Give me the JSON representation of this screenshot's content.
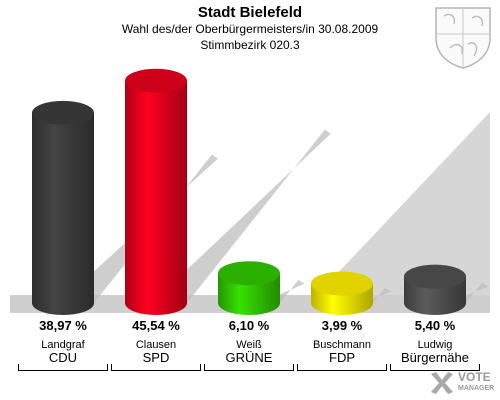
{
  "header": {
    "title": "Stadt Bielefeld",
    "subtitle_line1": "Wahl des/der Oberbürgermeisters/in 30.08.2009",
    "subtitle_line2": "Stimmbezirk 020.3"
  },
  "watermark": {
    "line1": "VOTE",
    "line2": "MANAGER"
  },
  "chart_data": {
    "type": "bar",
    "title": "Stadt Bielefeld",
    "subtitle": "Wahl des/der Oberbürgermeisters/in 30.08.2009 — Stimmbezirk 020.3",
    "categories": [
      "CDU",
      "SPD",
      "GRÜNE",
      "FDP",
      "Bürgernähe"
    ],
    "candidates": [
      "Landgraf",
      "Clausen",
      "Weiß",
      "Buschmann",
      "Ludwig"
    ],
    "values": [
      38.97,
      45.54,
      6.1,
      3.99,
      5.4
    ],
    "value_labels": [
      "38,97 %",
      "45,54 %",
      "6,10 %",
      "3,99 %",
      "5,40 %"
    ],
    "colors": [
      "#3a3a3a",
      "#e0001b",
      "#2fbf00",
      "#f5e400",
      "#4d4d4d"
    ],
    "ylim": [
      0,
      50
    ],
    "grid": false,
    "legend": "none"
  }
}
